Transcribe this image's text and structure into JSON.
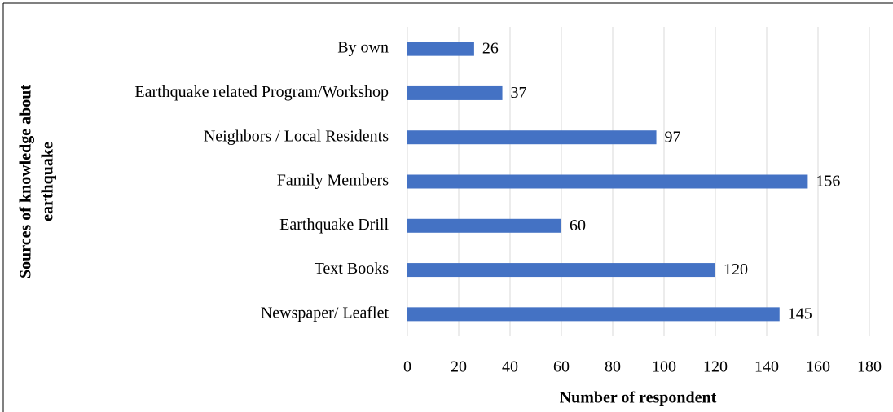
{
  "chart_data": {
    "type": "hbar",
    "categories": [
      "By own",
      "Earthquake related Program/Workshop",
      "Neighbors / Local Residents",
      "Family Members",
      "Earthquake Drill",
      "Text Books",
      "Newspaper/ Leaflet"
    ],
    "values": [
      26,
      37,
      97,
      156,
      60,
      120,
      145
    ],
    "color": "#4472c4",
    "xlim": [
      0,
      180
    ],
    "xticks": [
      0,
      20,
      40,
      60,
      80,
      100,
      120,
      140,
      160,
      180
    ],
    "xlabel": "Number of respondent",
    "ylabel": [
      "Sources of knowledge about",
      "earthquake"
    ],
    "grid": true
  }
}
